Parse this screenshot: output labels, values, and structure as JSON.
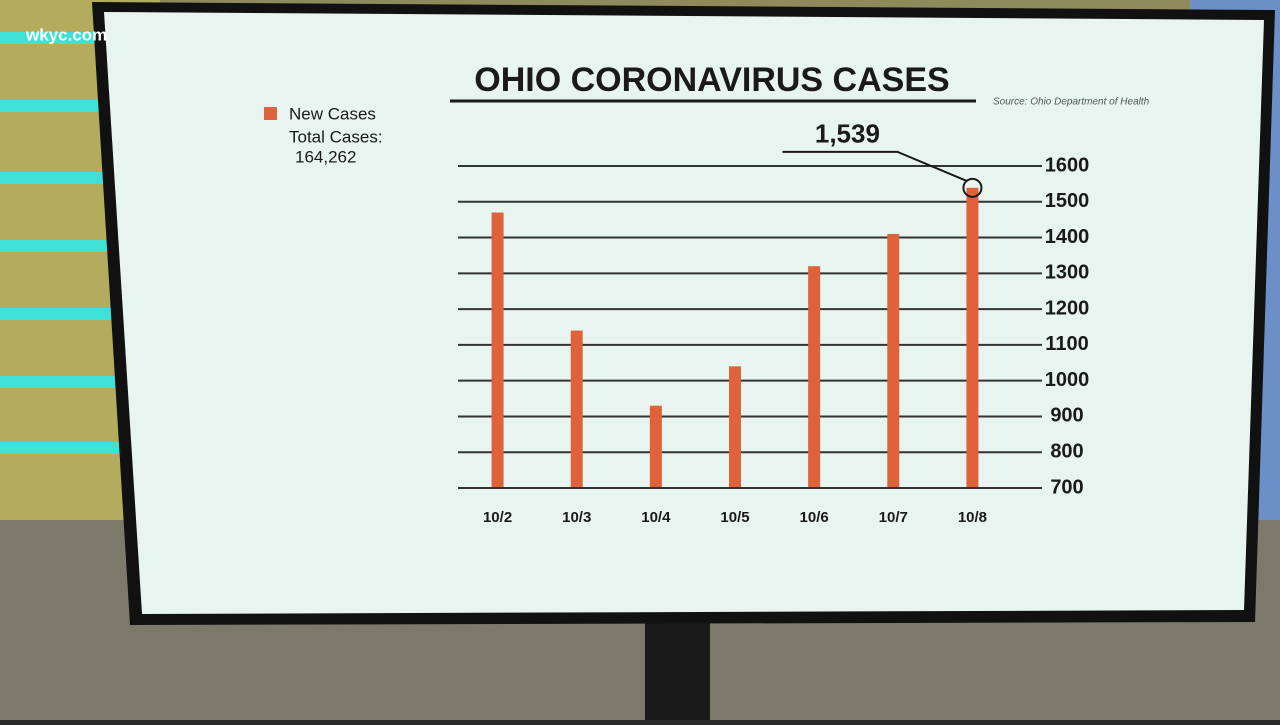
{
  "watermark": "wkyc.com",
  "chart_data": {
    "type": "bar",
    "title": "OHIO CORONAVIRUS CASES",
    "source": "Source: Ohio Department of Health",
    "total_label": "Total Cases:",
    "total_value": "164,262",
    "categories": [
      "10/2",
      "10/3",
      "10/4",
      "10/5",
      "10/6",
      "10/7",
      "10/8"
    ],
    "series": [
      {
        "name": "New Cases",
        "color": "#e0623a",
        "values": [
          1470,
          1140,
          930,
          1040,
          1320,
          1410,
          1539
        ],
        "value_labels": [
          null,
          null,
          null,
          null,
          null,
          null,
          "1,539"
        ]
      }
    ],
    "ylim": [
      700,
      1600
    ],
    "yticks": [
      700,
      800,
      900,
      1000,
      1100,
      1200,
      1300,
      1400,
      1500,
      1600
    ],
    "grid": true
  }
}
